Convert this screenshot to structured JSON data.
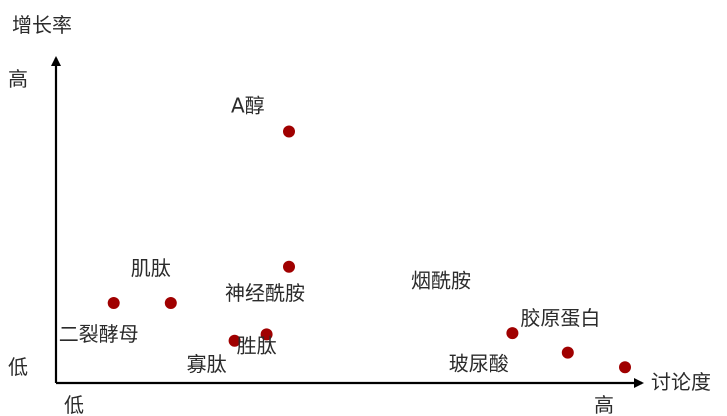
{
  "chart_data": {
    "type": "scatter",
    "title": "",
    "xlabel": "讨论度",
    "ylabel": "增长率",
    "x_ticks": {
      "low": "低",
      "high": "高"
    },
    "y_ticks": {
      "low": "低",
      "high": "高"
    },
    "xlim": [
      0,
      100
    ],
    "ylim": [
      0,
      100
    ],
    "grid": false,
    "legend": "none",
    "point_color": "#a00000",
    "axis_color": "#000000",
    "points": [
      {
        "name": "A醇",
        "x": 41.6,
        "y": 78.6
      },
      {
        "name": "神经酰胺",
        "x": 41.6,
        "y": 36.3
      },
      {
        "name": "肌肽",
        "x": 20.5,
        "y": 25.0
      },
      {
        "name": "二裂酵母",
        "x": 10.3,
        "y": 25.0
      },
      {
        "name": "寡肽",
        "x": 31.9,
        "y": 13.2
      },
      {
        "name": "胜肽",
        "x": 37.6,
        "y": 15.2
      },
      {
        "name": "胶原蛋白",
        "x": 81.5,
        "y": 15.6
      },
      {
        "name": "玻尿酸",
        "x": 91.4,
        "y": 9.5
      },
      {
        "name": "烟酰胺",
        "x": 101.6,
        "y": 4.9
      }
    ]
  }
}
